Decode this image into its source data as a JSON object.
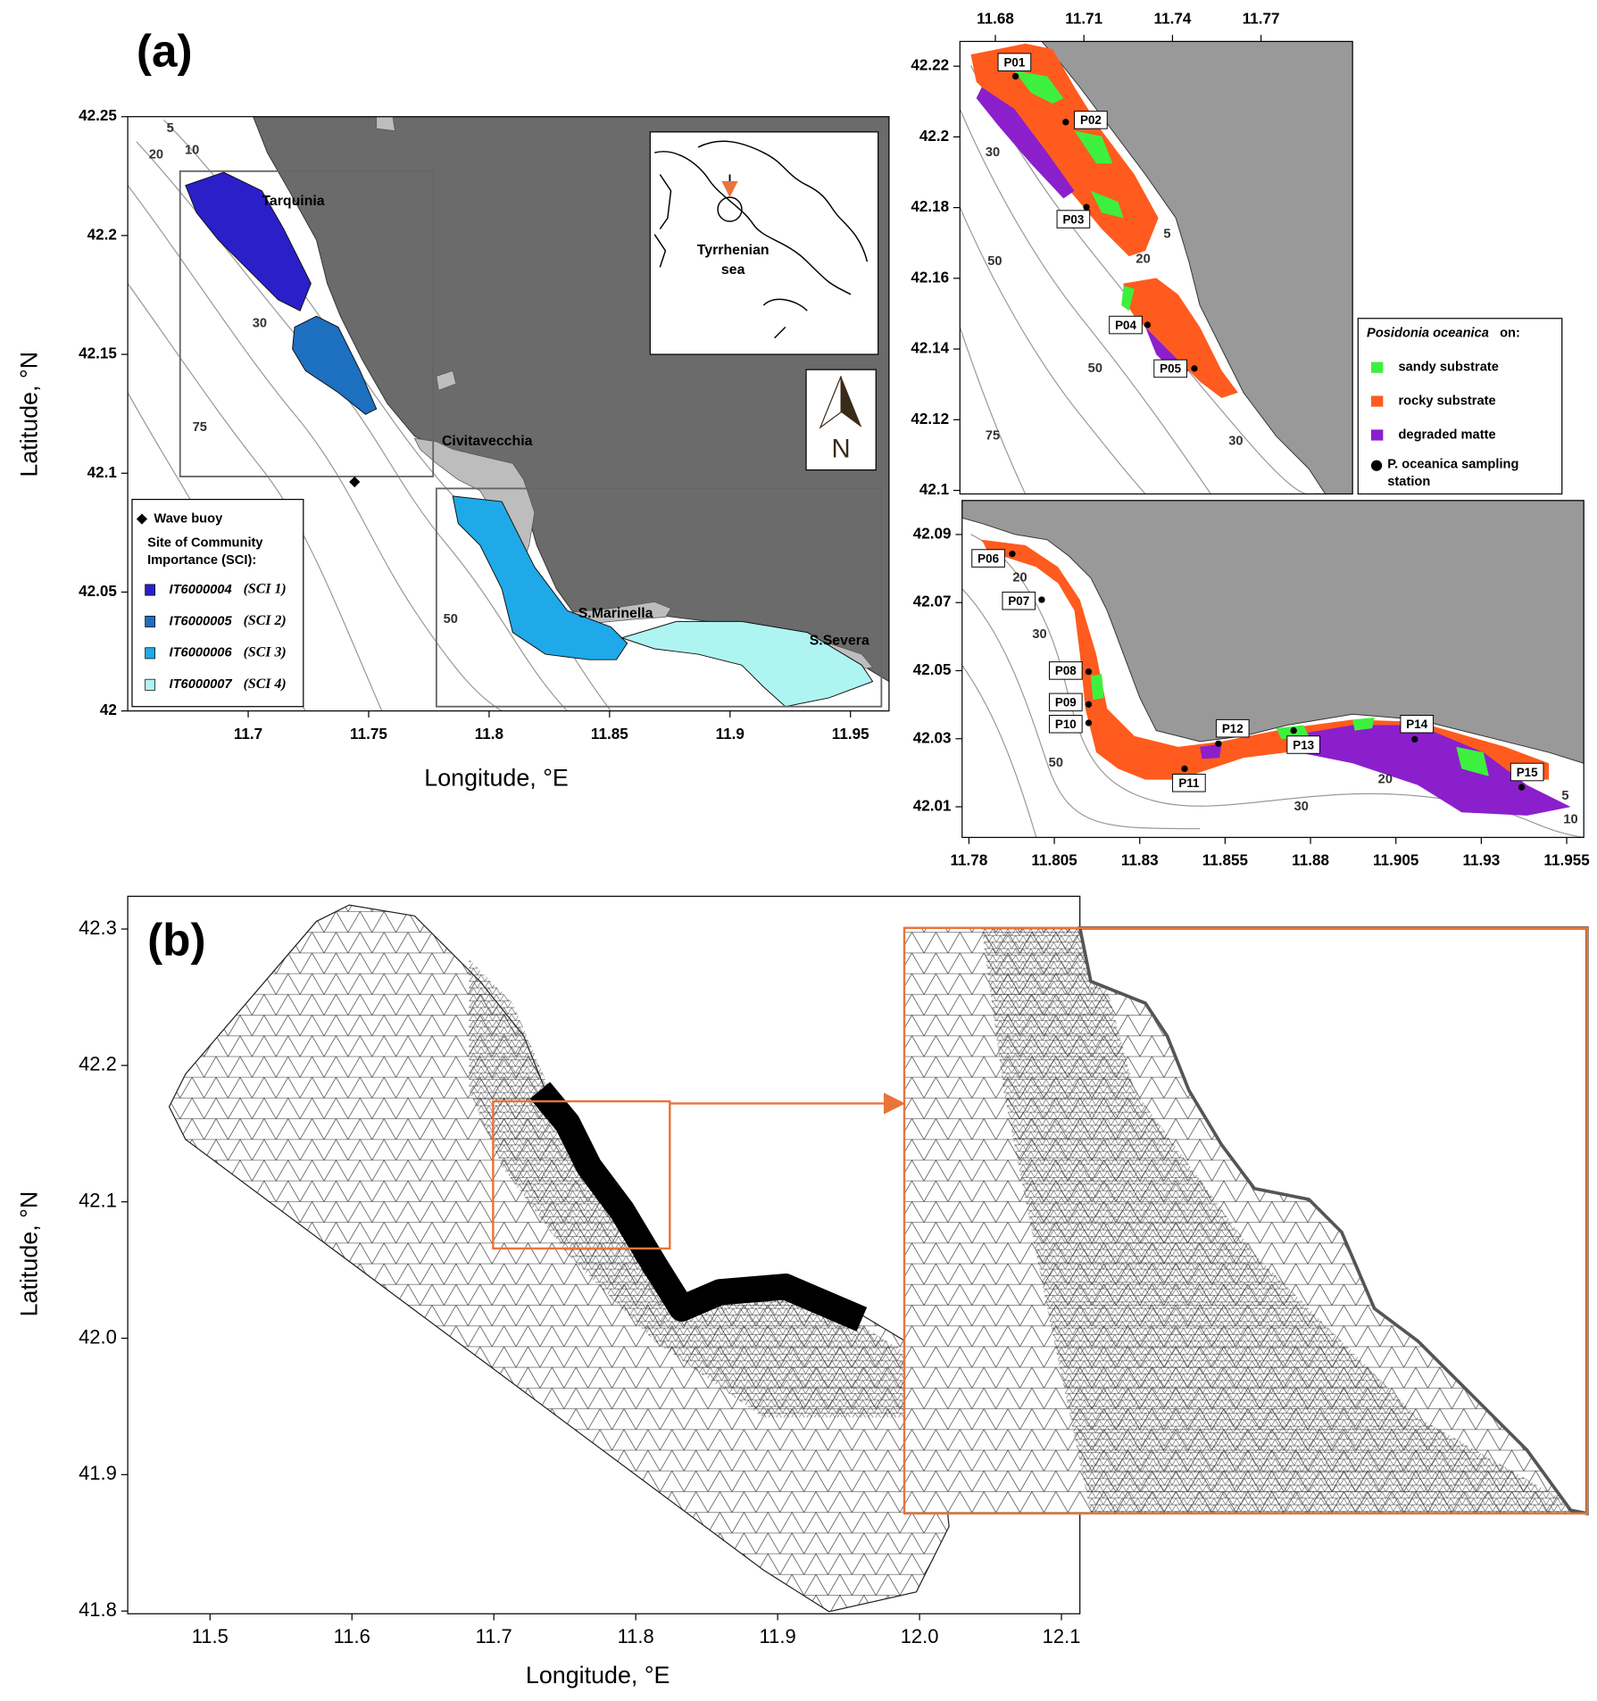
{
  "panel_a": {
    "label": "(a)",
    "xlabel": "Longitude, °E",
    "ylabel": "Latitude, °N",
    "xlim": [
      11.65,
      11.966
    ],
    "ylim": [
      42,
      42.25
    ],
    "xticks": [
      11.7,
      11.75,
      11.8,
      11.85,
      11.9,
      11.95
    ],
    "yticks": [
      42,
      42.05,
      42.1,
      42.15,
      42.2,
      42.25
    ],
    "places": [
      "Tarquinia",
      "Civitavecchia",
      "S.Marinella",
      "S.Severa"
    ],
    "contour_labels": [
      5,
      10,
      20,
      30,
      75,
      50
    ],
    "inset_label": [
      "Tyrrhenian",
      "sea"
    ],
    "north": "N",
    "legend": {
      "buoy": "Wave buoy",
      "title": [
        "Site of Community",
        "Importance (SCI):"
      ],
      "sites": [
        {
          "code": "IT6000004",
          "name": "(SCI 1)",
          "color": "#2a1fc9"
        },
        {
          "code": "IT6000005",
          "name": "(SCI 2)",
          "color": "#1d6fc0"
        },
        {
          "code": "IT6000006",
          "name": "(SCI 3)",
          "color": "#1fa9e8"
        },
        {
          "code": "IT6000007",
          "name": "(SCI 4)",
          "color": "#aef5f2"
        }
      ]
    }
  },
  "panel_a_north": {
    "xlim": [
      11.668,
      11.801
    ],
    "ylim": [
      42.099,
      42.227
    ],
    "xticks": [
      11.68,
      11.71,
      11.74,
      11.77
    ],
    "yticks": [
      42.1,
      42.12,
      42.14,
      42.16,
      42.18,
      42.2,
      42.22
    ],
    "contour_labels": [
      30,
      5,
      20,
      50,
      50,
      75,
      30
    ],
    "stations": [
      "P01",
      "P02",
      "P03",
      "P04",
      "P05"
    ],
    "legend": {
      "title": "Posidonia oceanica",
      "title_suffix": "on:",
      "items": [
        {
          "label": "sandy substrate",
          "color": "#3ef03e"
        },
        {
          "label": "rocky substrate",
          "color": "#ff5b1e"
        },
        {
          "label": "degraded matte",
          "color": "#8b1fcc"
        }
      ],
      "station": [
        "P. oceanica sampling",
        "station"
      ]
    }
  },
  "panel_a_south": {
    "xlim": [
      11.778,
      11.96
    ],
    "ylim": [
      42.001,
      42.1
    ],
    "xticks": [
      11.78,
      11.805,
      11.83,
      11.855,
      11.88,
      11.905,
      11.93,
      11.955
    ],
    "yticks": [
      42.01,
      42.03,
      42.05,
      42.07,
      42.09
    ],
    "contour_labels": [
      20,
      30,
      50,
      30,
      20,
      5,
      10
    ],
    "stations": [
      "P06",
      "P07",
      "P08",
      "P09",
      "P10",
      "P11",
      "P12",
      "P13",
      "P14",
      "P15"
    ]
  },
  "panel_b": {
    "label": "(b)",
    "xlabel": "Longitude, °E",
    "ylabel": "Latitude, °N",
    "xlim": [
      11.442,
      12.113
    ],
    "ylim": [
      41.798,
      42.324
    ],
    "xticks": [
      11.5,
      11.6,
      11.7,
      11.8,
      11.9,
      {
        "value": 12,
        "label": "12.0"
      },
      12.1
    ],
    "yticks": [
      41.8,
      41.9,
      {
        "value": 42,
        "label": "42.0"
      },
      42.1,
      42.2,
      42.3
    ]
  }
}
